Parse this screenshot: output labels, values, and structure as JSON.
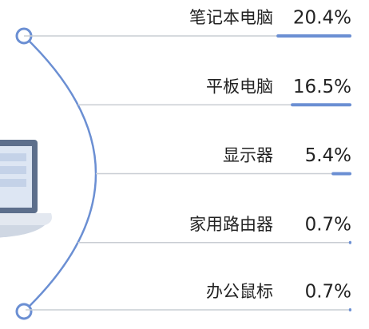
{
  "chart_data": {
    "type": "bar",
    "categories": [
      "笔记本电脑",
      "平板电脑",
      "显示器",
      "家用路由器",
      "办公鼠标"
    ],
    "values": [
      20.4,
      16.5,
      5.4,
      0.7,
      0.7
    ],
    "value_labels": [
      "20.4%",
      "16.5%",
      "5.4%",
      "0.7%",
      "0.7%"
    ],
    "color": "#6b8fd3"
  }
}
